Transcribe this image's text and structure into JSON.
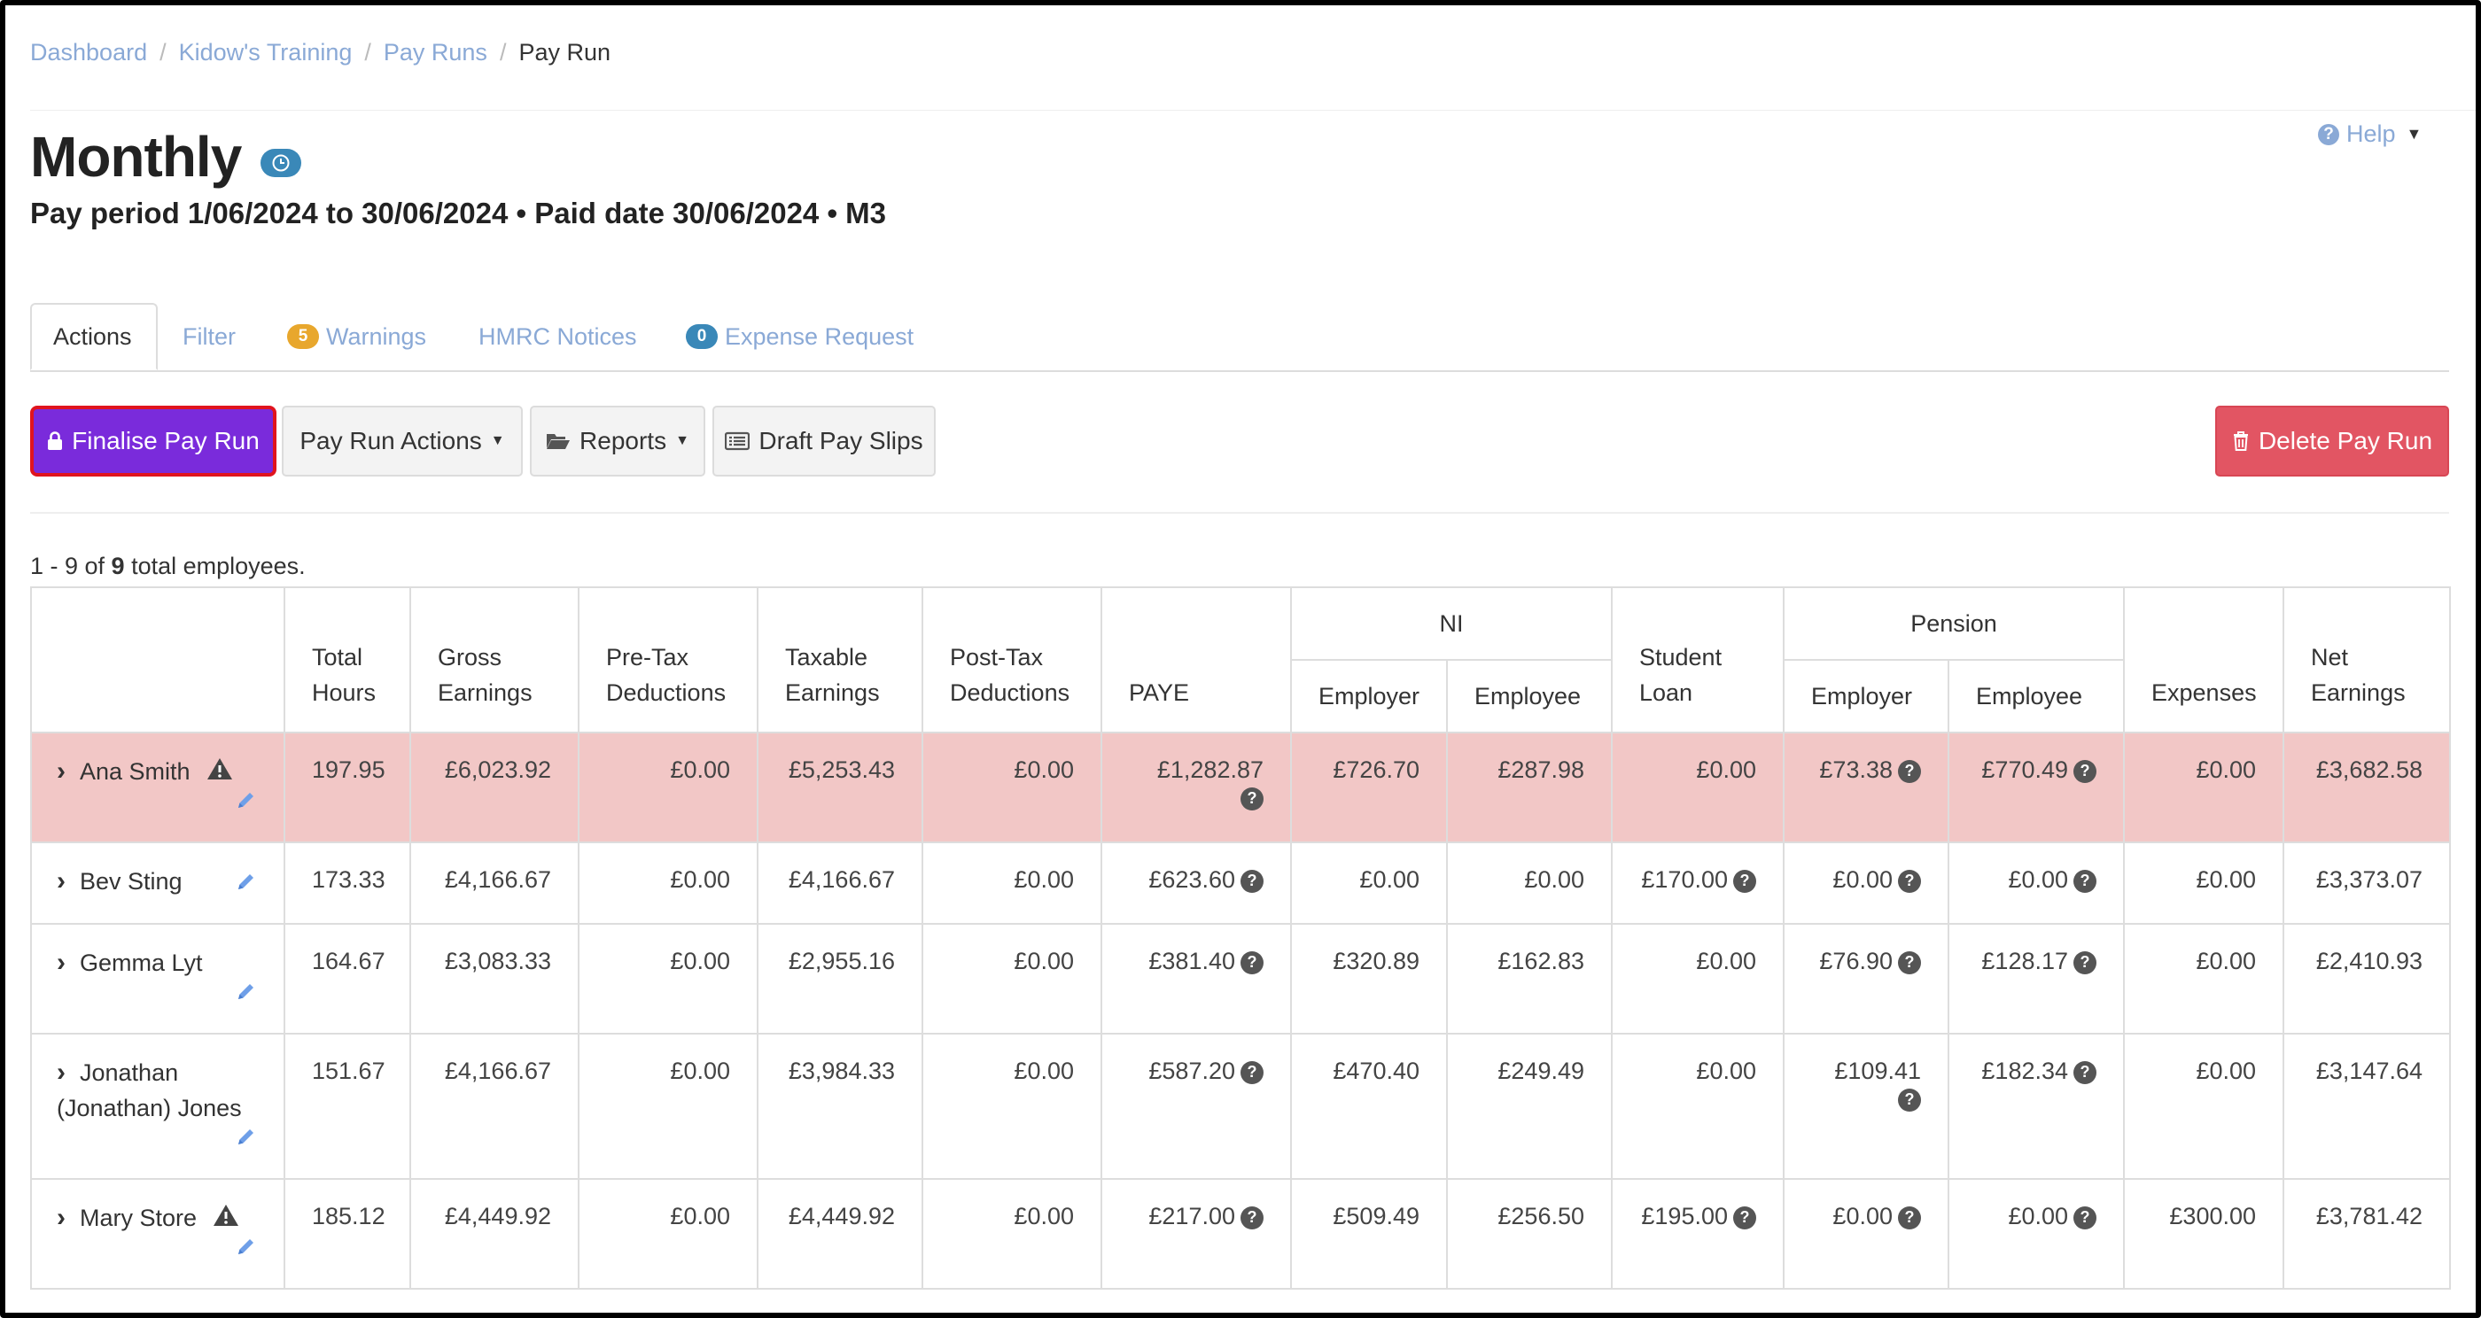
{
  "breadcrumb": {
    "items": [
      "Dashboard",
      "Kidow's Training",
      "Pay Runs"
    ],
    "current": "Pay Run",
    "separator": "/"
  },
  "header": {
    "title": "Monthly",
    "subtitle": "Pay period 1/06/2024 to 30/06/2024 • Paid date 30/06/2024 • M3",
    "help_label": "Help"
  },
  "tabs": {
    "actions": "Actions",
    "filter": "Filter",
    "warnings": "Warnings",
    "warnings_count": "5",
    "hmrc": "HMRC Notices",
    "expense": "Expense Request",
    "expense_count": "0"
  },
  "toolbar": {
    "finalise": "Finalise Pay Run",
    "actions": "Pay Run Actions",
    "reports": "Reports",
    "draft": "Draft Pay Slips",
    "delete": "Delete Pay Run"
  },
  "count": {
    "prefix": "1 - 9 of ",
    "total": "9",
    "suffix": " total employees."
  },
  "table": {
    "headers": {
      "total_hours": [
        "Total",
        "Hours"
      ],
      "gross": [
        "Gross",
        "Earnings"
      ],
      "pretax": [
        "Pre-Tax",
        "Deductions"
      ],
      "taxable": [
        "Taxable",
        "Earnings"
      ],
      "posttax": [
        "Post-Tax",
        "Deductions"
      ],
      "paye": "PAYE",
      "ni": "NI",
      "ni_employer": "Employer",
      "ni_employee": "Employee",
      "student": [
        "Student",
        "Loan"
      ],
      "pension": "Pension",
      "pen_employer": "Employer",
      "pen_employee": "Employee",
      "expenses": "Expenses",
      "net": [
        "Net",
        "Earnings"
      ]
    },
    "rows": [
      {
        "name": "Ana Smith",
        "name2": "",
        "warning": true,
        "highlight": true,
        "hours": "197.95",
        "gross": "£6,023.92",
        "pretax": "£0.00",
        "taxable": "£5,253.43",
        "posttax": "£0.00",
        "paye": "£1,282.87",
        "ni_er": "£726.70",
        "ni_ee": "£287.98",
        "student": "£0.00",
        "student_q": false,
        "pen_er": "£73.38",
        "pen_ee": "£770.49",
        "expenses": "£0.00",
        "net": "£3,682.58"
      },
      {
        "name": "Bev Sting",
        "name2": "",
        "warning": false,
        "highlight": false,
        "hours": "173.33",
        "gross": "£4,166.67",
        "pretax": "£0.00",
        "taxable": "£4,166.67",
        "posttax": "£0.00",
        "paye": "£623.60",
        "ni_er": "£0.00",
        "ni_ee": "£0.00",
        "student": "£170.00",
        "student_q": true,
        "pen_er": "£0.00",
        "pen_ee": "£0.00",
        "expenses": "£0.00",
        "net": "£3,373.07"
      },
      {
        "name": "Gemma Lyt",
        "name2": "",
        "warning": false,
        "highlight": false,
        "hours": "164.67",
        "gross": "£3,083.33",
        "pretax": "£0.00",
        "taxable": "£2,955.16",
        "posttax": "£0.00",
        "paye": "£381.40",
        "ni_er": "£320.89",
        "ni_ee": "£162.83",
        "student": "£0.00",
        "student_q": false,
        "pen_er": "£76.90",
        "pen_ee": "£128.17",
        "expenses": "£0.00",
        "net": "£2,410.93"
      },
      {
        "name": "Jonathan",
        "name2": "(Jonathan) Jones",
        "warning": false,
        "highlight": false,
        "hours": "151.67",
        "gross": "£4,166.67",
        "pretax": "£0.00",
        "taxable": "£3,984.33",
        "posttax": "£0.00",
        "paye": "£587.20",
        "ni_er": "£470.40",
        "ni_ee": "£249.49",
        "student": "£0.00",
        "student_q": false,
        "pen_er": "£109.41",
        "pen_ee": "£182.34",
        "expenses": "£0.00",
        "net": "£3,147.64"
      },
      {
        "name": "Mary Store",
        "name2": "",
        "warning": true,
        "highlight": false,
        "hours": "185.12",
        "gross": "£4,449.92",
        "pretax": "£0.00",
        "taxable": "£4,449.92",
        "posttax": "£0.00",
        "paye": "£217.00",
        "ni_er": "£509.49",
        "ni_ee": "£256.50",
        "student": "£195.00",
        "student_q": true,
        "pen_er": "£0.00",
        "pen_ee": "£0.00",
        "expenses": "£300.00",
        "net": "£3,781.42"
      }
    ]
  },
  "colors": {
    "accent_link": "#8aa9d6",
    "finalise_bg": "#7a2bdb",
    "finalise_border": "#e0141e",
    "delete_bg": "#e25563",
    "row_highlight": "#f2c7c6",
    "warnings_badge": "#e8a72d",
    "expense_badge": "#3a88b8"
  },
  "icons": {
    "title_badge": "clock-icon",
    "help": "question-circle-icon",
    "finalise": "lock-icon",
    "reports": "folder-open-icon",
    "draft": "list-icon",
    "delete": "trash-icon",
    "row_expand": "chevron-right-icon",
    "row_warning": "warning-triangle-icon",
    "row_edit": "pencil-icon",
    "cell_info": "question-circle-icon"
  }
}
